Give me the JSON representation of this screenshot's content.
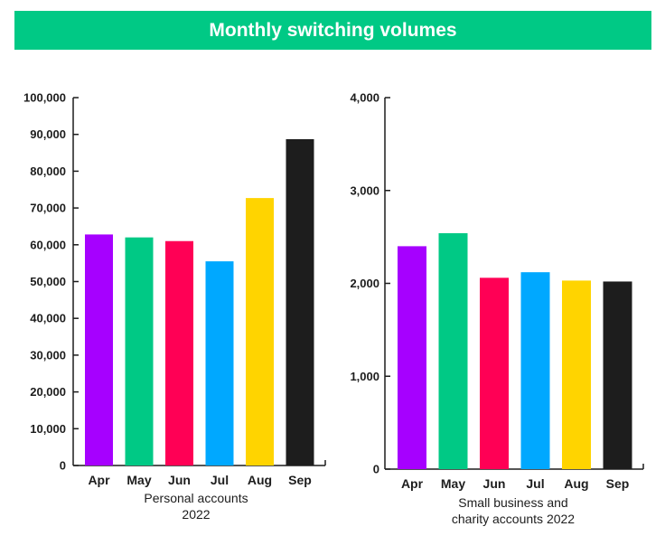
{
  "title": "Monthly switching volumes",
  "colors": {
    "banner": "#00c985",
    "axis": "#1d1d1d",
    "bars": [
      "#a600ff",
      "#00c985",
      "#ff0055",
      "#00a8ff",
      "#ffd400",
      "#1d1d1d"
    ]
  },
  "chart_data": [
    {
      "type": "bar",
      "categories": [
        "Apr",
        "May",
        "Jun",
        "Jul",
        "Aug",
        "Sep"
      ],
      "values": [
        62800,
        62000,
        61000,
        55500,
        72700,
        88700
      ],
      "ylim": [
        0,
        100000
      ],
      "yticks": [
        "0",
        "10,000",
        "20,000",
        "30,000",
        "40,000",
        "50,000",
        "60,000",
        "70,000",
        "80,000",
        "90,000",
        "100,000"
      ],
      "xlabel": [
        "Personal accounts",
        "2022"
      ],
      "ylabel": "",
      "title": ""
    },
    {
      "type": "bar",
      "categories": [
        "Apr",
        "May",
        "Jun",
        "Jul",
        "Aug",
        "Sep"
      ],
      "values": [
        2400,
        2540,
        2060,
        2120,
        2030,
        2020
      ],
      "ylim": [
        0,
        4000
      ],
      "yticks": [
        "0",
        "1,000",
        "2,000",
        "3,000",
        "4,000"
      ],
      "xlabel": [
        "Small business and",
        "charity accounts 2022"
      ],
      "ylabel": "",
      "title": ""
    }
  ]
}
